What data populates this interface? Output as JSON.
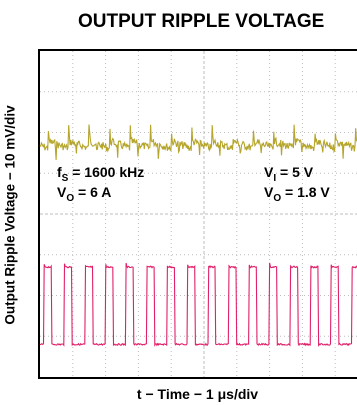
{
  "chart_data": {
    "type": "line",
    "title": "OUTPUT RIPPLE VOLTAGE",
    "xlabel": "t − Time − 1 μs/div",
    "ylabel": "Output Ripple Voltage − 10 mV/div",
    "grid": true,
    "grid_divisions": {
      "x": 10,
      "y": 8
    },
    "annotations": {
      "fs_label": "f",
      "fs_sub": "S",
      "fs_value": " = 1600 kHz",
      "vo_label": "V",
      "vo_sub": "O",
      "vo_value": " = 6 A",
      "vi_label": "V",
      "vi_sub": "I",
      "vi_value": " = 5 V",
      "vo2_label": "V",
      "vo2_sub": "O",
      "vo2_value": " = 1.8 V"
    },
    "series": [
      {
        "color": "#b5a52a",
        "trace": "output ripple",
        "period_us": 0.625,
        "level_div": 2.3,
        "ripple_div": 0.35
      },
      {
        "color": "#e0206a",
        "trace": "switching node",
        "period_us": 0.625,
        "duty": 0.375,
        "high_div": 5.3,
        "low_div": 7.2
      }
    ]
  }
}
